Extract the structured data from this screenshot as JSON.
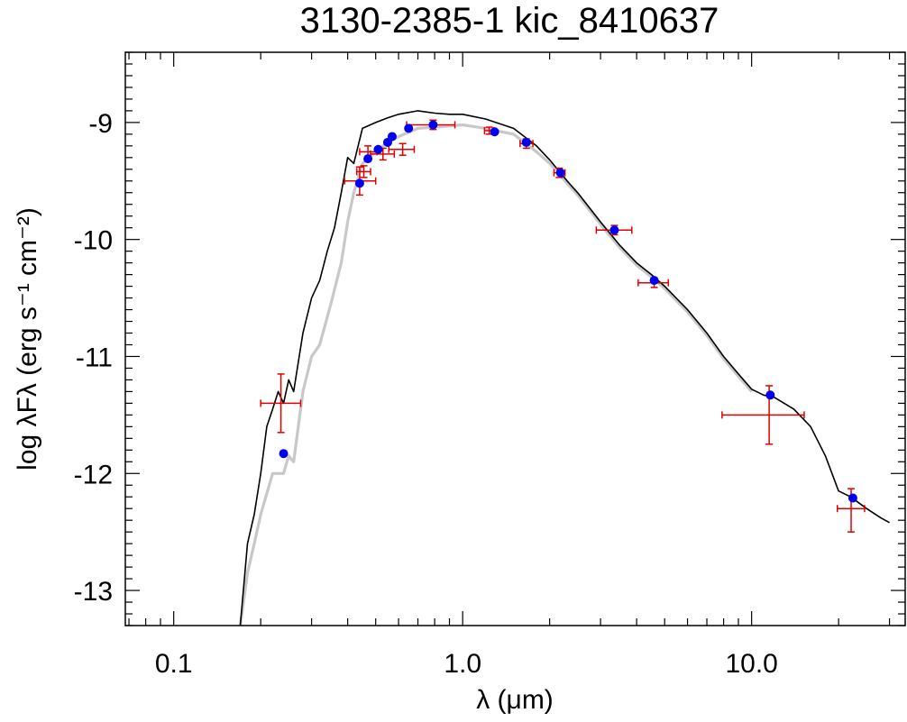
{
  "chart_data": {
    "type": "scatter",
    "title": "3130-2385-1   kic_8410637",
    "xlabel": "λ (μm)",
    "ylabel": "log λFλ (erg s⁻¹ cm⁻²)",
    "x_scale": "log",
    "xlim": [
      0.068,
      34.0
    ],
    "ylim": [
      -13.3,
      -8.4
    ],
    "x_ticks": [
      {
        "value": 0.1,
        "label": "0.1"
      },
      {
        "value": 1.0,
        "label": "1.0"
      },
      {
        "value": 10.0,
        "label": "10.0"
      }
    ],
    "y_ticks": [
      {
        "value": -9,
        "label": "-9"
      },
      {
        "value": -10,
        "label": "-10"
      },
      {
        "value": -11,
        "label": "-11"
      },
      {
        "value": -12,
        "label": "-12"
      },
      {
        "value": -13,
        "label": "-13"
      }
    ],
    "colors": {
      "model_black": "#000000",
      "model_gray": "#c8c8c8",
      "observed": "#e00000",
      "synthetic": "#0000ee"
    },
    "series": [
      {
        "name": "model SED (black)",
        "points": [
          [
            0.17,
            -13.3
          ],
          [
            0.18,
            -12.6
          ],
          [
            0.19,
            -12.35
          ],
          [
            0.2,
            -12.0
          ],
          [
            0.21,
            -11.6
          ],
          [
            0.22,
            -11.45
          ],
          [
            0.23,
            -11.3
          ],
          [
            0.24,
            -11.4
          ],
          [
            0.25,
            -11.2
          ],
          [
            0.26,
            -11.3
          ],
          [
            0.28,
            -10.8
          ],
          [
            0.3,
            -10.5
          ],
          [
            0.32,
            -10.35
          ],
          [
            0.34,
            -10.1
          ],
          [
            0.36,
            -9.9
          ],
          [
            0.38,
            -9.6
          ],
          [
            0.4,
            -9.3
          ],
          [
            0.42,
            -9.35
          ],
          [
            0.45,
            -9.05
          ],
          [
            0.5,
            -9.0
          ],
          [
            0.55,
            -8.96
          ],
          [
            0.6,
            -8.93
          ],
          [
            0.7,
            -8.9
          ],
          [
            0.8,
            -8.92
          ],
          [
            0.9,
            -8.93
          ],
          [
            1.0,
            -8.93
          ],
          [
            1.2,
            -8.97
          ],
          [
            1.5,
            -9.05
          ],
          [
            1.8,
            -9.2
          ],
          [
            2.0,
            -9.32
          ],
          [
            2.3,
            -9.5
          ],
          [
            2.5,
            -9.6
          ],
          [
            3.0,
            -9.85
          ],
          [
            3.5,
            -10.05
          ],
          [
            4.0,
            -10.2
          ],
          [
            4.5,
            -10.3
          ],
          [
            5.0,
            -10.4
          ],
          [
            6.0,
            -10.6
          ],
          [
            7.0,
            -10.8
          ],
          [
            8.0,
            -11.0
          ],
          [
            9.0,
            -11.15
          ],
          [
            10.0,
            -11.28
          ],
          [
            11.0,
            -11.33
          ],
          [
            12.0,
            -11.35
          ],
          [
            14.0,
            -11.45
          ],
          [
            16.0,
            -11.6
          ],
          [
            18.0,
            -11.85
          ],
          [
            20.0,
            -12.15
          ],
          [
            22.0,
            -12.2
          ],
          [
            25.0,
            -12.3
          ],
          [
            28.0,
            -12.38
          ],
          [
            30.0,
            -12.42
          ]
        ]
      },
      {
        "name": "model SED (gray)",
        "points": [
          [
            0.17,
            -13.3
          ],
          [
            0.18,
            -12.85
          ],
          [
            0.19,
            -12.6
          ],
          [
            0.2,
            -12.35
          ],
          [
            0.22,
            -12.0
          ],
          [
            0.24,
            -12.0
          ],
          [
            0.25,
            -11.85
          ],
          [
            0.26,
            -11.9
          ],
          [
            0.28,
            -11.3
          ],
          [
            0.3,
            -11.0
          ],
          [
            0.32,
            -10.9
          ],
          [
            0.35,
            -10.55
          ],
          [
            0.38,
            -10.2
          ],
          [
            0.4,
            -9.85
          ],
          [
            0.42,
            -9.6
          ],
          [
            0.45,
            -9.35
          ],
          [
            0.5,
            -9.25
          ],
          [
            0.55,
            -9.17
          ],
          [
            0.6,
            -9.12
          ],
          [
            0.7,
            -9.05
          ],
          [
            0.8,
            -9.04
          ],
          [
            0.9,
            -9.03
          ],
          [
            1.0,
            -9.02
          ],
          [
            1.2,
            -9.05
          ],
          [
            1.5,
            -9.1
          ],
          [
            1.8,
            -9.25
          ],
          [
            2.0,
            -9.35
          ],
          [
            2.3,
            -9.52
          ],
          [
            2.5,
            -9.62
          ],
          [
            3.0,
            -9.87
          ],
          [
            3.5,
            -10.07
          ],
          [
            4.0,
            -10.22
          ],
          [
            4.5,
            -10.32
          ],
          [
            5.0,
            -10.42
          ],
          [
            6.0,
            -10.62
          ],
          [
            7.0,
            -10.82
          ],
          [
            8.0,
            -11.02
          ],
          [
            9.0,
            -11.17
          ],
          [
            10.0,
            -11.3
          ]
        ]
      },
      {
        "name": "observed photometry",
        "points": [
          {
            "x": 0.235,
            "y": -11.4,
            "xlo": 0.2,
            "xhi": 0.275,
            "ylo": -11.65,
            "yhi": -11.15
          },
          {
            "x": 0.44,
            "y": -9.5,
            "xlo": 0.39,
            "xhi": 0.5,
            "ylo": -9.62,
            "yhi": -9.38
          },
          {
            "x": 0.455,
            "y": -9.42,
            "xlo": 0.43,
            "xhi": 0.48,
            "ylo": -9.47,
            "yhi": -9.37
          },
          {
            "x": 0.47,
            "y": -9.25,
            "xlo": 0.44,
            "xhi": 0.505,
            "ylo": -9.3,
            "yhi": -9.2
          },
          {
            "x": 0.53,
            "y": -9.27,
            "xlo": 0.48,
            "xhi": 0.58,
            "ylo": -9.32,
            "yhi": -9.22
          },
          {
            "x": 0.62,
            "y": -9.23,
            "xlo": 0.555,
            "xhi": 0.68,
            "ylo": -9.28,
            "yhi": -9.18
          },
          {
            "x": 0.79,
            "y": -9.02,
            "xlo": 0.64,
            "xhi": 0.94,
            "ylo": -9.06,
            "yhi": -8.98
          },
          {
            "x": 1.235,
            "y": -9.07,
            "xlo": 1.19,
            "xhi": 1.28,
            "ylo": -9.1,
            "yhi": -9.04
          },
          {
            "x": 1.66,
            "y": -9.18,
            "xlo": 1.58,
            "xhi": 1.75,
            "ylo": -9.22,
            "yhi": -9.14
          },
          {
            "x": 2.16,
            "y": -9.43,
            "xlo": 2.07,
            "xhi": 2.26,
            "ylo": -9.47,
            "yhi": -9.39
          },
          {
            "x": 3.35,
            "y": -9.92,
            "xlo": 2.9,
            "xhi": 3.85,
            "ylo": -9.96,
            "yhi": -9.88
          },
          {
            "x": 4.6,
            "y": -10.37,
            "xlo": 4.05,
            "xhi": 5.15,
            "ylo": -10.41,
            "yhi": -10.33
          },
          {
            "x": 11.5,
            "y": -11.5,
            "xlo": 7.9,
            "xhi": 15.2,
            "ylo": -11.75,
            "yhi": -11.25
          },
          {
            "x": 22.1,
            "y": -12.3,
            "xlo": 19.8,
            "xhi": 24.6,
            "ylo": -12.5,
            "yhi": -12.13
          }
        ]
      },
      {
        "name": "synthetic photometry",
        "points": [
          [
            0.24,
            -11.83
          ],
          [
            0.44,
            -9.52
          ],
          [
            0.47,
            -9.31
          ],
          [
            0.51,
            -9.23
          ],
          [
            0.55,
            -9.17
          ],
          [
            0.57,
            -9.12
          ],
          [
            0.65,
            -9.05
          ],
          [
            0.79,
            -9.02
          ],
          [
            1.29,
            -9.08
          ],
          [
            1.66,
            -9.17
          ],
          [
            2.18,
            -9.43
          ],
          [
            3.35,
            -9.92
          ],
          [
            4.6,
            -10.35
          ],
          [
            11.6,
            -11.33
          ],
          [
            22.4,
            -12.21
          ]
        ]
      }
    ]
  }
}
